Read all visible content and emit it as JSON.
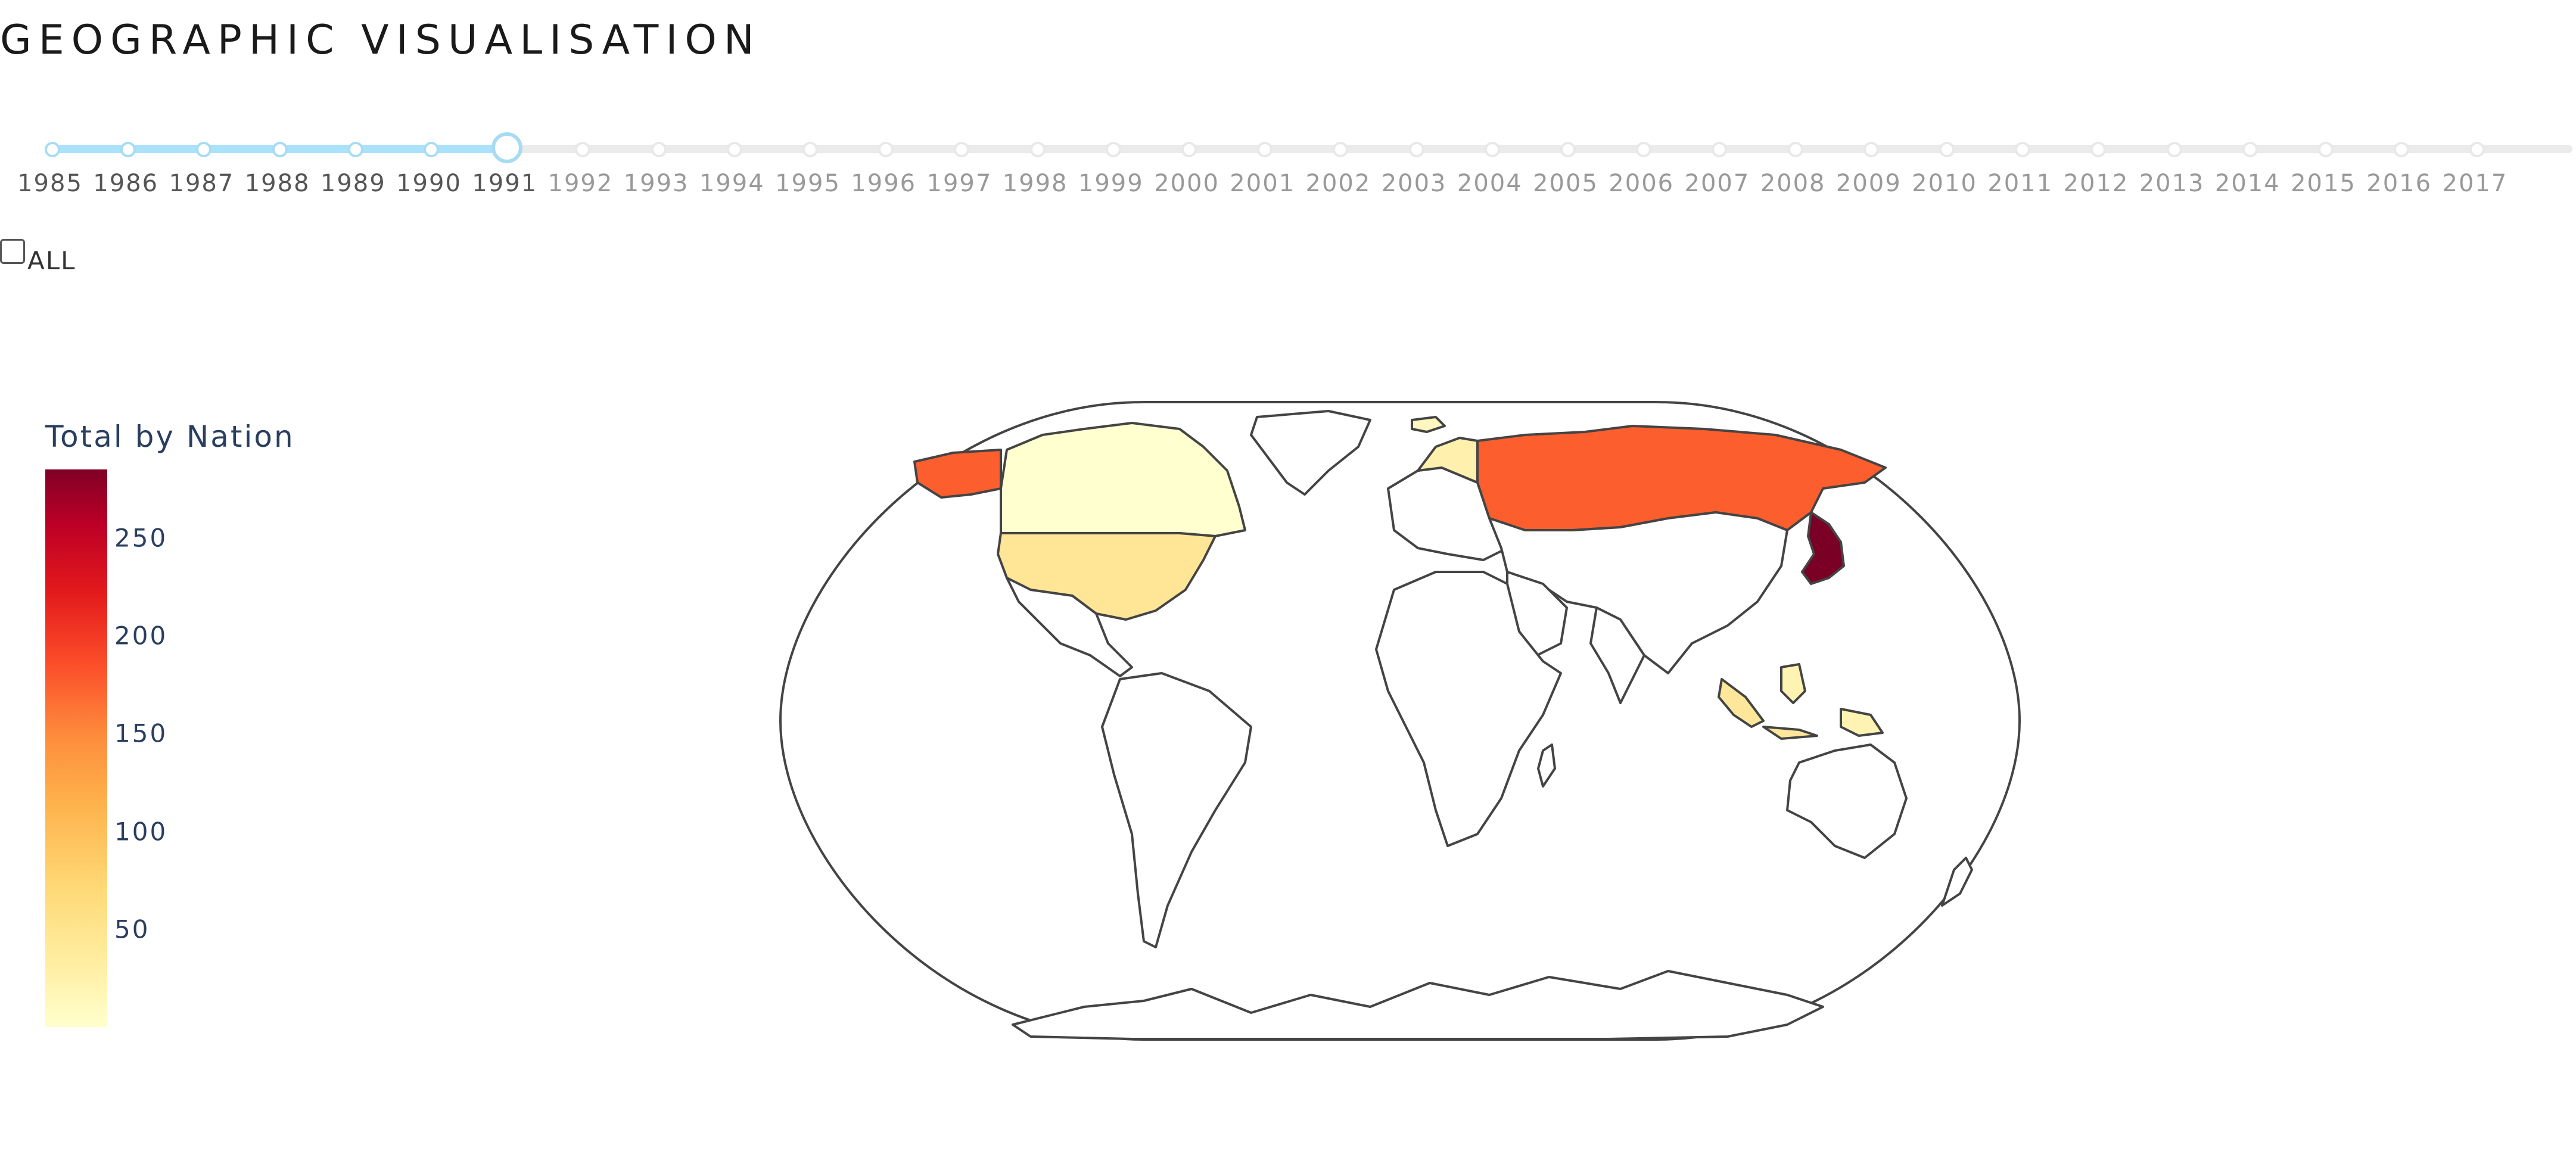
{
  "page": {
    "title": "GEOGRAPHIC VISUALISATION"
  },
  "year_slider": {
    "years": [
      "1985",
      "1986",
      "1987",
      "1988",
      "1989",
      "1990",
      "1991",
      "1992",
      "1993",
      "1994",
      "1995",
      "1996",
      "1997",
      "1998",
      "1999",
      "2000",
      "2001",
      "2002",
      "2003",
      "2004",
      "2005",
      "2006",
      "2007",
      "2008",
      "2009",
      "2010",
      "2011",
      "2012",
      "2013",
      "2014",
      "2015",
      "2016",
      "2017"
    ],
    "selected_year": "1991",
    "selected_index": 6,
    "track_color": "#abe2fb",
    "rail_color": "#ebebeb"
  },
  "all_toggle": {
    "label": "ALL",
    "checked": false
  },
  "colorbar": {
    "title": "Total by Nation",
    "ticks": [
      "50",
      "100",
      "150",
      "200",
      "250"
    ],
    "range": [
      0,
      285
    ],
    "colorscale": [
      "#ffffcc",
      "#ffeda0",
      "#fed976",
      "#feb24c",
      "#fd8d3c",
      "#fc4e2a",
      "#e31a1c",
      "#bd0026",
      "#800026"
    ]
  },
  "map": {
    "projection": "natural earth",
    "land_color": "#ffffff",
    "border_color": "#444444",
    "highlighted": [
      {
        "region": "Russia",
        "level": 165,
        "color": "#fc5e2e"
      },
      {
        "region": "Japan",
        "level": 280,
        "color": "#7a0026"
      },
      {
        "region": "United States",
        "level": 45,
        "color": "#ffe596"
      },
      {
        "region": "Canada",
        "level": 8,
        "color": "#ffffcf"
      },
      {
        "region": "Alaska",
        "level": 165,
        "color": "#fc5e2e"
      },
      {
        "region": "Indonesia",
        "level": 35,
        "color": "#fee79b"
      },
      {
        "region": "Philippines",
        "level": 20,
        "color": "#fff3b4"
      },
      {
        "region": "Papua New Guinea",
        "level": 20,
        "color": "#fff3b4"
      },
      {
        "region": "Norway",
        "level": 30,
        "color": "#fff0ad"
      },
      {
        "region": "Iceland",
        "level": 15,
        "color": "#fff7bf"
      }
    ]
  }
}
